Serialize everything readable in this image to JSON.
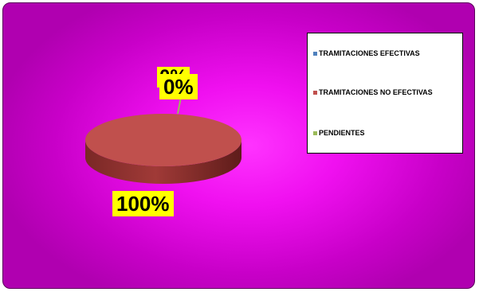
{
  "chart_data": {
    "type": "pie",
    "title": "",
    "style": "3d",
    "legend_position": "right",
    "slices": [
      {
        "name": "TRAMITACIONES EFECTIVAS",
        "value": 0,
        "label": "0%",
        "color": "#4f81bd"
      },
      {
        "name": "TRAMITACIONES NO EFECTIVAS",
        "value": 100,
        "label": "100%",
        "color": "#c0504d"
      },
      {
        "name": "PENDIENTES",
        "value": 0,
        "label": "0%",
        "color": "#9bbb59"
      }
    ]
  },
  "colors": {
    "background": "#e600e6",
    "label_background": "#ffff00",
    "pie_top": "#c0504d",
    "pie_side": "#8a2e2c"
  }
}
